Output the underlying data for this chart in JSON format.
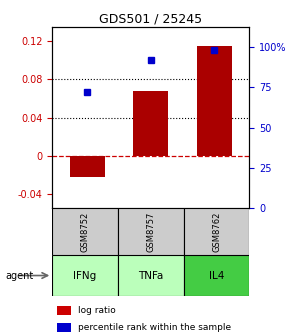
{
  "title": "GDS501 / 25245",
  "samples": [
    "GSM8752",
    "GSM8757",
    "GSM8762"
  ],
  "agents": [
    "IFNg",
    "TNFa",
    "IL4"
  ],
  "log_ratios": [
    -0.022,
    0.068,
    0.115
  ],
  "percentile_ranks": [
    0.72,
    0.92,
    0.98
  ],
  "bar_color": "#aa0000",
  "dot_color": "#0000cc",
  "ylim_left": [
    -0.055,
    0.135
  ],
  "ylim_right": [
    0,
    1.125
  ],
  "yticks_left": [
    -0.04,
    0.0,
    0.04,
    0.08,
    0.12
  ],
  "yticks_right": [
    0.0,
    0.25,
    0.5,
    0.75,
    1.0
  ],
  "ytick_labels_left": [
    "-0.04",
    "0",
    "0.04",
    "0.08",
    "0.12"
  ],
  "ytick_labels_right": [
    "0",
    "25",
    "50",
    "75",
    "100%"
  ],
  "hline_y": 0.0,
  "dotted_hlines": [
    0.04,
    0.08
  ],
  "sample_bg_color": "#cccccc",
  "agent_bg_colors": [
    "#bbffbb",
    "#bbffbb",
    "#44cc44"
  ],
  "legend_bar_color": "#cc0000",
  "legend_dot_color": "#0000cc",
  "bar_width": 0.55,
  "title_fontsize": 9,
  "tick_fontsize": 7,
  "sample_fontsize": 6,
  "agent_fontsize": 7.5,
  "legend_fontsize": 6.5
}
